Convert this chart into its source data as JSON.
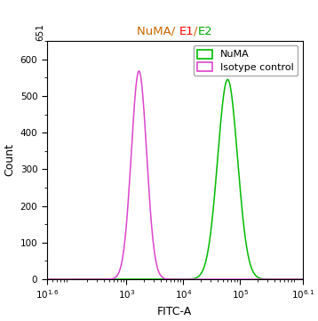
{
  "title_parts": [
    "NuMA/ ",
    "E1",
    "/",
    "E2"
  ],
  "title_colors": [
    "#cc6600",
    "#ff0000",
    "#cc6600",
    "#00aa00"
  ],
  "xlabel": "FITC-A",
  "ylabel": "Count",
  "xlim_log": [
    1.6,
    6.1
  ],
  "ylim": [
    0,
    651
  ],
  "yticks": [
    0,
    100,
    200,
    300,
    400,
    500,
    600
  ],
  "ytop_label": "651",
  "numa_color": "#00bb00",
  "isotype_color": "#dd44cc",
  "numa_peak_log": 4.78,
  "numa_peak_height": 545,
  "numa_sigma_log": 0.175,
  "isotype_peak_log": 3.22,
  "isotype_peak_height": 568,
  "isotype_sigma_log": 0.135,
  "legend_labels": [
    "NuMA",
    "Isotype control"
  ],
  "bg_color": "#ffffff",
  "xtick_positions": [
    1.6,
    3,
    4,
    5,
    6.1
  ],
  "xtick_labels": [
    "$10^{1.6}$",
    "$10^3$",
    "$10^4$",
    "$10^5$",
    "$10^{6.1}$"
  ]
}
